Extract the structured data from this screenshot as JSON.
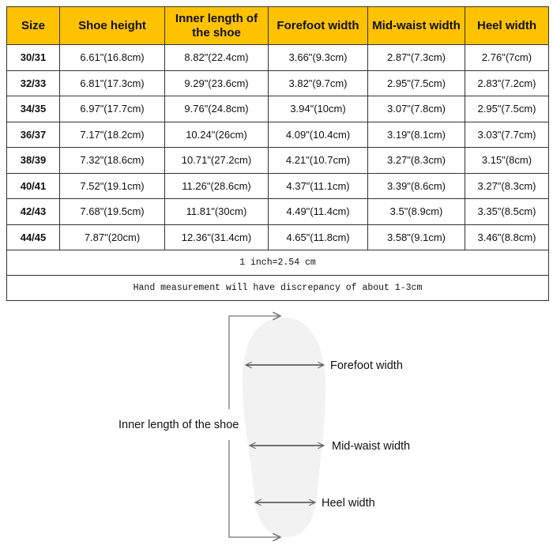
{
  "table": {
    "headers": [
      "Size",
      "Shoe height",
      "Inner length of the shoe",
      "Forefoot width",
      "Mid-waist width",
      "Heel width"
    ],
    "rows": [
      [
        "30/31",
        "6.61\"(16.8cm)",
        "8.82\"(22.4cm)",
        "3.66\"(9.3cm)",
        "2.87\"(7.3cm)",
        "2.76\"(7cm)"
      ],
      [
        "32/33",
        "6.81\"(17.3cm)",
        "9.29\"(23.6cm)",
        "3.82\"(9.7cm)",
        "2.95\"(7.5cm)",
        "2.83\"(7.2cm)"
      ],
      [
        "34/35",
        "6.97\"(17.7cm)",
        "9.76\"(24.8cm)",
        "3.94\"(10cm)",
        "3.07\"(7.8cm)",
        "2.95\"(7.5cm)"
      ],
      [
        "36/37",
        "7.17\"(18.2cm)",
        "10.24\"(26cm)",
        "4.09\"(10.4cm)",
        "3.19\"(8.1cm)",
        "3.03\"(7.7cm)"
      ],
      [
        "38/39",
        "7.32\"(18.6cm)",
        "10.71\"(27.2cm)",
        "4.21\"(10.7cm)",
        "3.27\"(8.3cm)",
        "3.15\"(8cm)"
      ],
      [
        "40/41",
        "7.52\"(19.1cm)",
        "11.26\"(28.6cm)",
        "4.37\"(11.1cm)",
        "3.39\"(8.6cm)",
        "3.27\"(8.3cm)"
      ],
      [
        "42/43",
        "7.68\"(19.5cm)",
        "11.81\"(30cm)",
        "4.49\"(11.4cm)",
        "3.5\"(8.9cm)",
        "3.35\"(8.5cm)"
      ],
      [
        "44/45",
        "7.87\"(20cm)",
        "12.36\"(31.4cm)",
        "4.65\"(11.8cm)",
        "3.58\"(9.1cm)",
        "3.46\"(8.8cm)"
      ]
    ],
    "notes": [
      "1 inch=2.54 cm",
      "Hand measurement will have discrepancy of about 1-3cm"
    ],
    "header_color": "#fec200"
  },
  "diagram": {
    "inner_length_label": "Inner length of the shoe",
    "forefoot_label": "Forefoot width",
    "midwaist_label": "Mid-waist width",
    "heel_label": "Heel width",
    "insole_color": "#f2f2f2"
  }
}
